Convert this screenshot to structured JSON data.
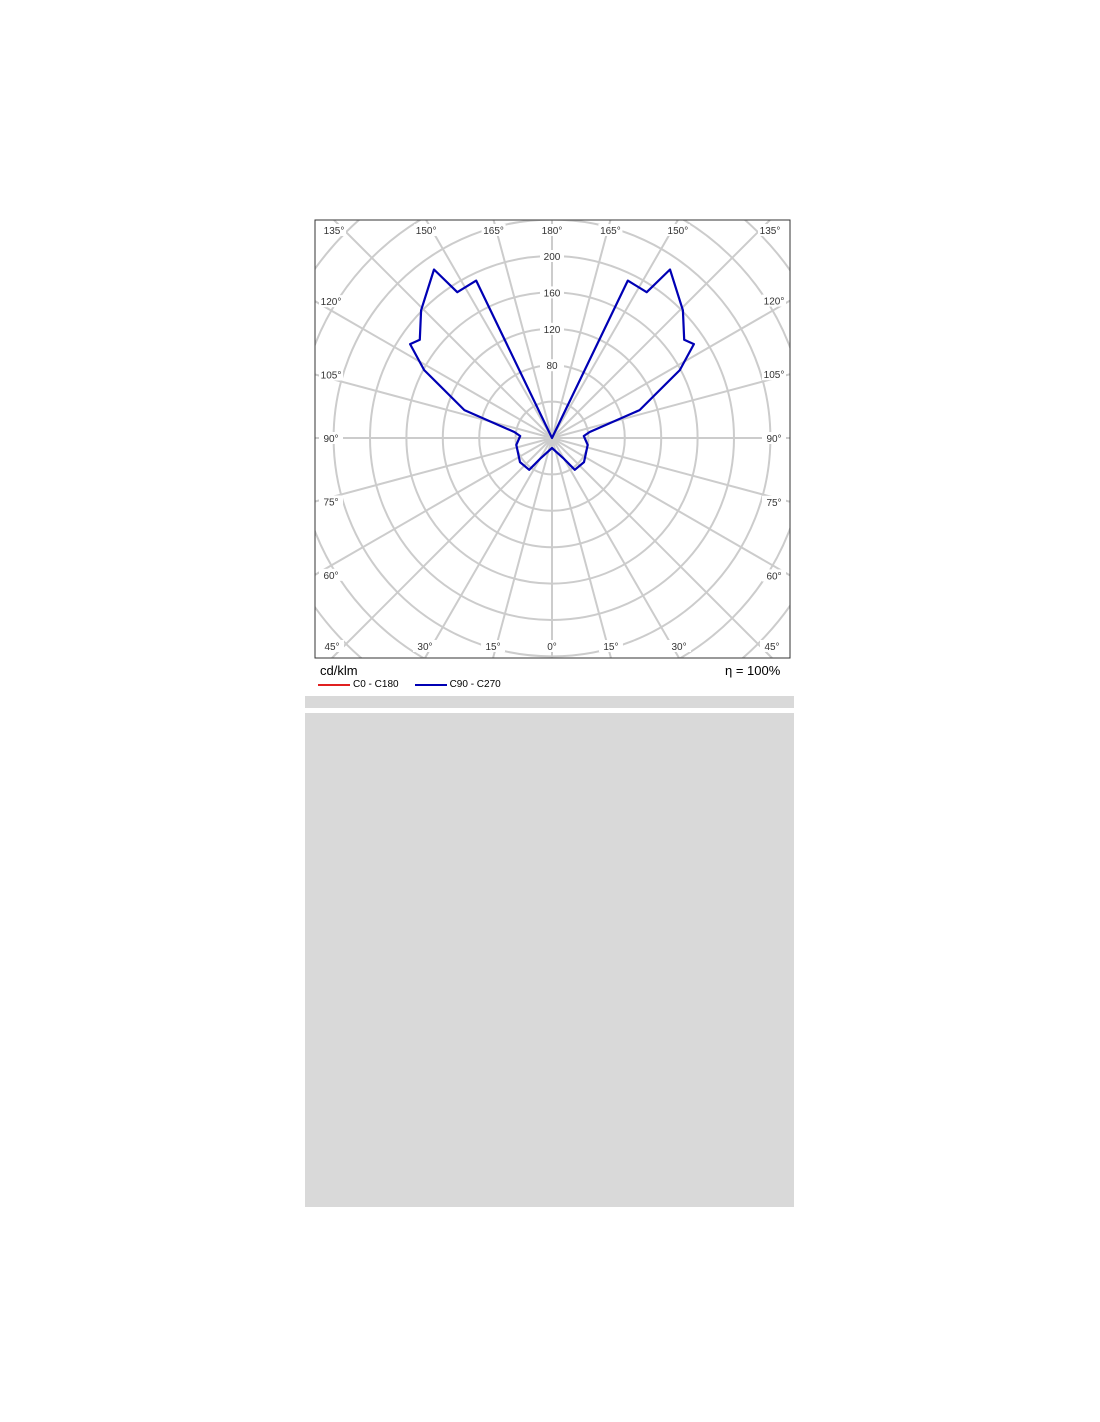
{
  "chart_data": {
    "type": "polar",
    "unit_label": "cd/klm",
    "efficiency_label": "η = 100%",
    "radial_ticks": [
      80,
      120,
      160,
      200
    ],
    "radial_grid_step": 40,
    "radial_max": 360,
    "angle_step": 15,
    "angle_ticks": [
      "0°",
      "15°",
      "30°",
      "45°",
      "60°",
      "75°",
      "90°",
      "105°",
      "120°",
      "135°",
      "150°",
      "165°",
      "180°"
    ],
    "grid": true,
    "grid_color": "#cccccc",
    "legend": [
      {
        "name": "C0 - C180",
        "color": "#e02020"
      },
      {
        "name": "C90 - C270",
        "color": "#0000b4"
      }
    ],
    "series": [
      {
        "name": "C90 - C270",
        "color": "#0000b4",
        "symmetric": true,
        "gamma": [
          0,
          28.8,
          35.7,
          53,
          79,
          93.6,
          99,
          107.7,
          118,
          123.5,
          126.6,
          134.3,
          145,
          147,
          154.3,
          180
        ],
        "values": [
          11,
          25,
          43,
          44,
          40,
          35,
          42,
          101,
          159,
          187,
          181,
          201,
          226,
          191,
          192,
          0
        ]
      }
    ]
  }
}
